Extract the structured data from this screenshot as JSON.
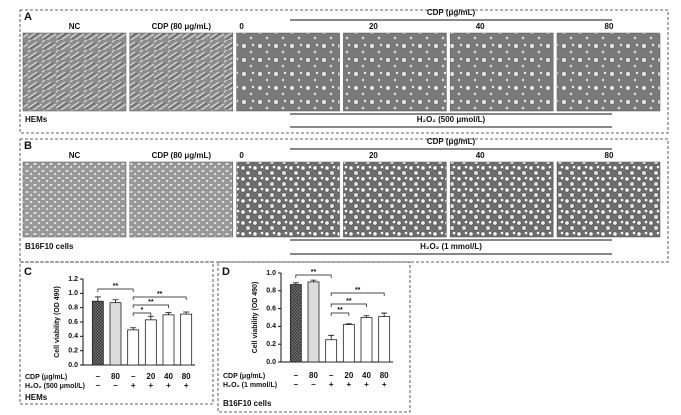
{
  "panels": [
    {
      "label": "A",
      "headers": [
        "NC",
        "CDP (80 μg/mL)",
        "0",
        "20",
        "40",
        "80"
      ],
      "cdp_header": "CDP (μg/mL)",
      "treatment": "H₂O₂ (500 μmol/L)",
      "cells": "HEMs"
    },
    {
      "label": "B",
      "headers": [
        "NC",
        "CDP (80 μg/mL)",
        "0",
        "20",
        "40",
        "80"
      ],
      "cdp_header": "CDP (μg/mL)",
      "treatment": "H₂O₂ (1 mmol/L)",
      "cells": "B16F10 cells"
    }
  ],
  "chart_data": [
    {
      "type": "bar",
      "label": "C",
      "ylabel": "Cell viability (OD 490)",
      "categories": [
        "–",
        "80",
        "–",
        "20",
        "40",
        "80"
      ],
      "h2o2_row": [
        "–",
        "–",
        "+",
        "+",
        "+",
        "+"
      ],
      "row_labels": [
        "CDP   (μg/mL)",
        "H₂O₂ (500 μmol/L)"
      ],
      "footer": "HEMs",
      "values": [
        0.89,
        0.87,
        0.49,
        0.63,
        0.7,
        0.71
      ],
      "errors": [
        0.06,
        0.04,
        0.03,
        0.05,
        0.03,
        0.03
      ],
      "colors": [
        "#6d6d6d",
        "#dcdcdc",
        "#ffffff",
        "#ffffff",
        "#ffffff",
        "#ffffff"
      ],
      "ylim": [
        0,
        1.2
      ],
      "yticks": [
        {
          "value": 0,
          "label": "0.0"
        },
        0.2,
        0.4,
        0.6,
        0.8,
        {
          "value": 1,
          "label": "1.0"
        },
        1.2
      ],
      "annotations": [
        "**",
        "**",
        "**",
        "*"
      ]
    },
    {
      "type": "bar",
      "label": "D",
      "ylabel": "Cell viability (OD 490)",
      "categories": [
        "–",
        "80",
        "–",
        "20",
        "40",
        "80"
      ],
      "h2o2_row": [
        "–",
        "–",
        "+",
        "+",
        "+",
        "+"
      ],
      "row_labels": [
        "CDP   (μg/mL)",
        "H₂O₂ (1 mmol/L)"
      ],
      "footer": "B16F10 cells",
      "values": [
        0.87,
        0.9,
        0.25,
        0.42,
        0.5,
        0.51
      ],
      "errors": [
        0.02,
        0.02,
        0.05,
        0.01,
        0.02,
        0.04
      ],
      "colors": [
        "#6d6d6d",
        "#dcdcdc",
        "#ffffff",
        "#ffffff",
        "#ffffff",
        "#ffffff"
      ],
      "ylim": [
        0,
        1
      ],
      "yticks": [
        {
          "value": 0,
          "label": "0.0"
        },
        0.2,
        0.4,
        0.6,
        0.8,
        {
          "value": 1,
          "label": "1.0"
        }
      ],
      "annotations": [
        "**",
        "**",
        "**",
        "**"
      ]
    }
  ]
}
